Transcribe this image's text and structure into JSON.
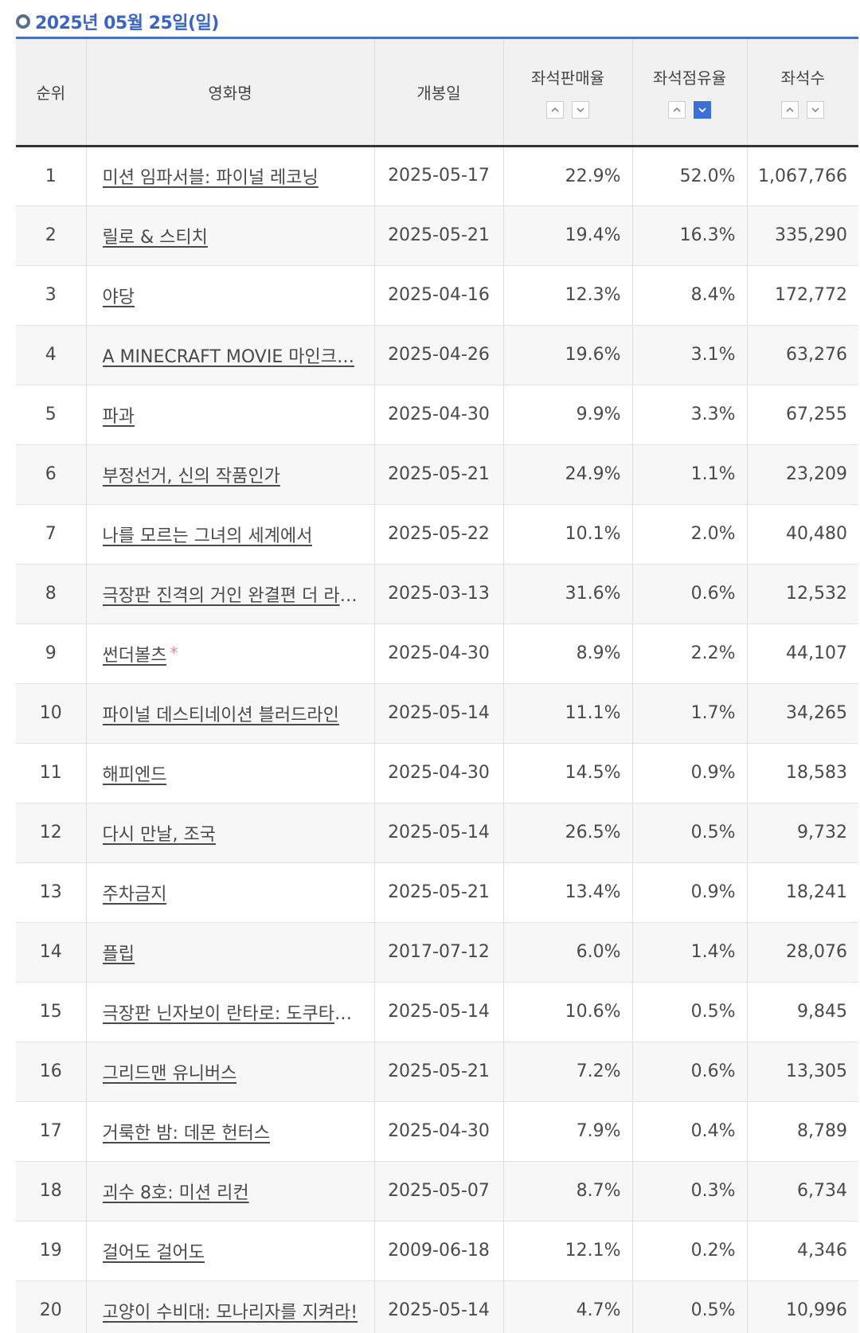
{
  "date_header": "2025년 05월 25일(일)",
  "columns": {
    "rank": "순위",
    "title": "영화명",
    "open_date": "개봉일",
    "seat_sales_share": "좌석판매율",
    "seat_occupancy": "좌석점유율",
    "seats": "좌석수"
  },
  "colors": {
    "accent": "#3a64c6",
    "active_sort": "#3a6fd8",
    "star": "#e8839a"
  },
  "active_sort": {
    "column": "seat_occupancy",
    "direction": "descending"
  },
  "rows": [
    {
      "rank": "1",
      "title": "미션 임파서블: 파이널 레코닝",
      "star": "",
      "open_date": "2025-05-17",
      "seat_sales_share": "22.9%",
      "seat_occupancy": "52.0%",
      "seats": "1,067,766"
    },
    {
      "rank": "2",
      "title": "릴로 & 스티치",
      "star": "",
      "open_date": "2025-05-21",
      "seat_sales_share": "19.4%",
      "seat_occupancy": "16.3%",
      "seats": "335,290"
    },
    {
      "rank": "3",
      "title": "야당",
      "star": "",
      "open_date": "2025-04-16",
      "seat_sales_share": "12.3%",
      "seat_occupancy": "8.4%",
      "seats": "172,772"
    },
    {
      "rank": "4",
      "title": "A MINECRAFT MOVIE 마인크…",
      "star": "",
      "open_date": "2025-04-26",
      "seat_sales_share": "19.6%",
      "seat_occupancy": "3.1%",
      "seats": "63,276"
    },
    {
      "rank": "5",
      "title": "파과",
      "star": "",
      "open_date": "2025-04-30",
      "seat_sales_share": "9.9%",
      "seat_occupancy": "3.3%",
      "seats": "67,255"
    },
    {
      "rank": "6",
      "title": "부정선거, 신의 작품인가",
      "star": "",
      "open_date": "2025-05-21",
      "seat_sales_share": "24.9%",
      "seat_occupancy": "1.1%",
      "seats": "23,209"
    },
    {
      "rank": "7",
      "title": "나를 모르는 그녀의 세계에서",
      "star": "",
      "open_date": "2025-05-22",
      "seat_sales_share": "10.1%",
      "seat_occupancy": "2.0%",
      "seats": "40,480"
    },
    {
      "rank": "8",
      "title": "극장판 진격의 거인 완결편 더 라스…",
      "star": "",
      "open_date": "2025-03-13",
      "seat_sales_share": "31.6%",
      "seat_occupancy": "0.6%",
      "seats": "12,532"
    },
    {
      "rank": "9",
      "title": "썬더볼츠",
      "star": "*",
      "open_date": "2025-04-30",
      "seat_sales_share": "8.9%",
      "seat_occupancy": "2.2%",
      "seats": "44,107"
    },
    {
      "rank": "10",
      "title": "파이널 데스티네이션 블러드라인",
      "star": "",
      "open_date": "2025-05-14",
      "seat_sales_share": "11.1%",
      "seat_occupancy": "1.7%",
      "seats": "34,265"
    },
    {
      "rank": "11",
      "title": "해피엔드",
      "star": "",
      "open_date": "2025-04-30",
      "seat_sales_share": "14.5%",
      "seat_occupancy": "0.9%",
      "seats": "18,583"
    },
    {
      "rank": "12",
      "title": "다시 만날, 조국",
      "star": "",
      "open_date": "2025-05-14",
      "seat_sales_share": "26.5%",
      "seat_occupancy": "0.5%",
      "seats": "9,732"
    },
    {
      "rank": "13",
      "title": "주차금지",
      "star": "",
      "open_date": "2025-05-21",
      "seat_sales_share": "13.4%",
      "seat_occupancy": "0.9%",
      "seats": "18,241"
    },
    {
      "rank": "14",
      "title": "플립",
      "star": "",
      "open_date": "2017-07-12",
      "seat_sales_share": "6.0%",
      "seat_occupancy": "1.4%",
      "seats": "28,076"
    },
    {
      "rank": "15",
      "title": "극장판 닌자보이 란타로: 도쿠타케…",
      "star": "",
      "open_date": "2025-05-14",
      "seat_sales_share": "10.6%",
      "seat_occupancy": "0.5%",
      "seats": "9,845"
    },
    {
      "rank": "16",
      "title": "그리드맨 유니버스",
      "star": "",
      "open_date": "2025-05-21",
      "seat_sales_share": "7.2%",
      "seat_occupancy": "0.6%",
      "seats": "13,305"
    },
    {
      "rank": "17",
      "title": "거룩한 밤: 데몬 헌터스",
      "star": "",
      "open_date": "2025-04-30",
      "seat_sales_share": "7.9%",
      "seat_occupancy": "0.4%",
      "seats": "8,789"
    },
    {
      "rank": "18",
      "title": "괴수 8호: 미션 리컨",
      "star": "",
      "open_date": "2025-05-07",
      "seat_sales_share": "8.7%",
      "seat_occupancy": "0.3%",
      "seats": "6,734"
    },
    {
      "rank": "19",
      "title": "걸어도 걸어도",
      "star": "",
      "open_date": "2009-06-18",
      "seat_sales_share": "12.1%",
      "seat_occupancy": "0.2%",
      "seats": "4,346"
    },
    {
      "rank": "20",
      "title": "고양이 수비대: 모나리자를 지켜라!",
      "star": "",
      "open_date": "2025-05-14",
      "seat_sales_share": "4.7%",
      "seat_occupancy": "0.5%",
      "seats": "10,996"
    }
  ]
}
